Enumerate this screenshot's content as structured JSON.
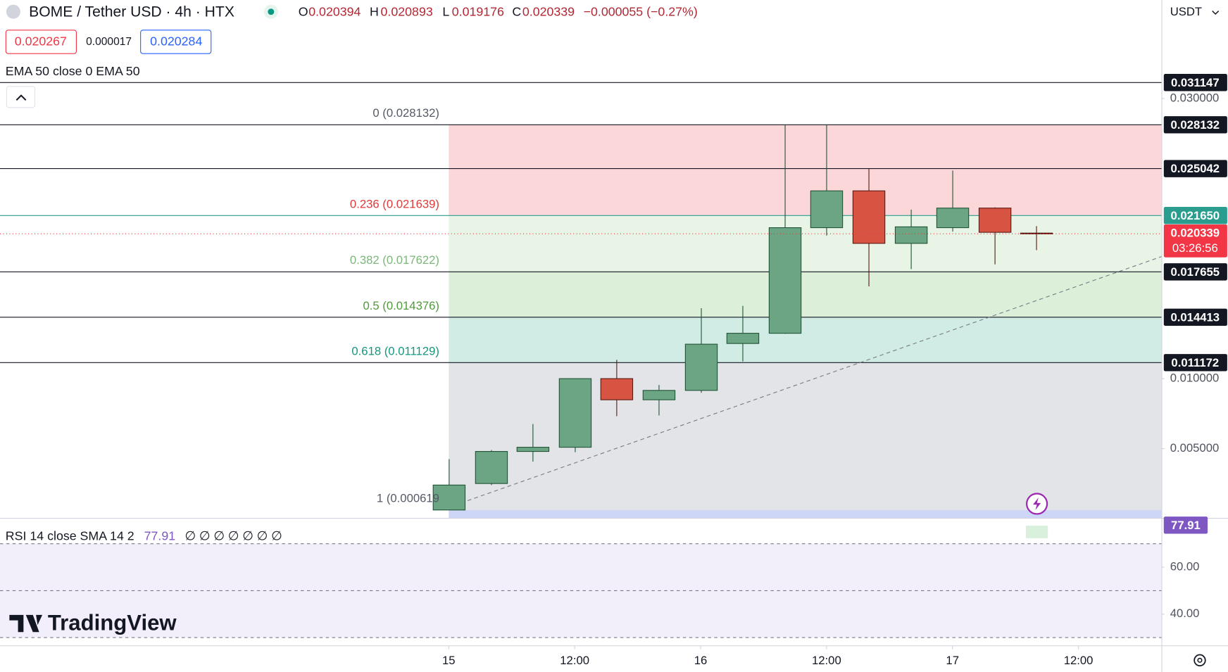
{
  "header": {
    "symbol": "BOME / Tether USD · 4h · HTX",
    "o_label": "O",
    "h_label": "H",
    "l_label": "L",
    "c_label": "C",
    "change": "−0.000055 (−0.27%)",
    "bid": "0.020267",
    "spread": "0.000017",
    "ask": "0.020284",
    "indicator": "EMA 50 close 0 EMA 50",
    "currency": "USDT",
    "brand": "TradingView"
  },
  "chart_data": {
    "type": "candlestick",
    "x": [
      0,
      4,
      8,
      12,
      16,
      20,
      24,
      28,
      32,
      36,
      40,
      44,
      48,
      52,
      56
    ],
    "open": [
      0.00062,
      0.00251,
      0.0048,
      0.0051,
      0.01,
      0.00849,
      0.00916,
      0.01251,
      0.01324,
      0.02078,
      0.02341,
      0.01966,
      0.02078,
      0.02218,
      0.020394
    ],
    "high": [
      0.00425,
      0.0049,
      0.00676,
      0.01,
      0.01134,
      0.00955,
      0.01503,
      0.0152,
      0.0281,
      0.02813,
      0.02497,
      0.02207,
      0.02486,
      0.02223,
      0.020893
    ],
    "low": [
      0.0006,
      0.0024,
      0.00408,
      0.00475,
      0.00732,
      0.00737,
      0.00899,
      0.01123,
      0.0132,
      0.02022,
      0.01659,
      0.01782,
      0.0205,
      0.01816,
      0.019176
    ],
    "close": [
      0.0024,
      0.0048,
      0.0051,
      0.01,
      0.00849,
      0.00916,
      0.01246,
      0.01324,
      0.02078,
      0.02341,
      0.01966,
      0.02084,
      0.02218,
      0.02045,
      0.020339
    ],
    "up_color": "#6ba583",
    "up_border": "#225437",
    "down_color": "#d75442",
    "down_border": "#5b1a13",
    "xlim": [
      -42.76,
      67.91
    ],
    "xticks": [
      {
        "value": 0,
        "label": "15"
      },
      {
        "value": 12,
        "label": "12:00"
      },
      {
        "value": 24,
        "label": "16"
      },
      {
        "value": 36,
        "label": "12:00"
      },
      {
        "value": 48,
        "label": "17"
      },
      {
        "value": 60,
        "label": "12:00"
      }
    ],
    "ylim": [
      5.6e-05,
      0.037039
    ],
    "yticks": [
      {
        "value": 0.005,
        "label": "0.005000"
      },
      {
        "value": 0.01,
        "label": "0.010000"
      },
      {
        "value": 0.03,
        "label": "0.030000"
      }
    ],
    "price_lines": [
      {
        "value": 0.031147,
        "color": "#131722"
      },
      {
        "value": 0.028132,
        "color": "#131722"
      },
      {
        "value": 0.025042,
        "color": "#131722"
      },
      {
        "value": 0.02165,
        "label": "0.021650",
        "color": "#2a9d8f"
      },
      {
        "value": 0.017655,
        "color": "#131722"
      },
      {
        "value": 0.014413,
        "color": "#131722"
      },
      {
        "value": 0.011172,
        "color": "#131722"
      }
    ],
    "fib_levels": [
      {
        "value": 0.028132,
        "label": "0 (0.028132)",
        "color": "#555a66",
        "zone_color": "#fbd7da"
      },
      {
        "value": 0.021639,
        "label": "0.236 (0.021639)",
        "color": "#e03a3a",
        "zone_color": "#e8f4e6"
      },
      {
        "value": 0.017622,
        "label": "0.382 (0.017622)",
        "color": "#7cb77a",
        "zone_color": "#dcefd9"
      },
      {
        "value": 0.014376,
        "label": "0.5 (0.014376)",
        "color": "#4f9b3b",
        "zone_color": "#d1ece5"
      },
      {
        "value": 0.011129,
        "label": "0.618 (0.011129)",
        "color": "#16967f",
        "zone_color": "#e3e4e7"
      },
      {
        "value": 0.000619,
        "label": "1 (0.000619",
        "color": "#555a66",
        "zone_color": "#cdd6f7"
      }
    ],
    "last_price_color": "#f23645",
    "countdown": "03:26:56"
  },
  "rsi": {
    "label": "RSI 14 close SMA 14 2",
    "value": 77.91,
    "empty_values": "∅ ∅ ∅ ∅ ∅ ∅ ∅",
    "color": "#7e57c2",
    "ylim": [
      26.67,
      80.67
    ],
    "yticks": [
      {
        "value": 60,
        "label": "60.00"
      },
      {
        "value": 40,
        "label": "40.00"
      }
    ],
    "band": [
      30,
      70
    ],
    "band_lines": [
      30,
      50,
      70
    ],
    "band_color": "#f2effa"
  }
}
